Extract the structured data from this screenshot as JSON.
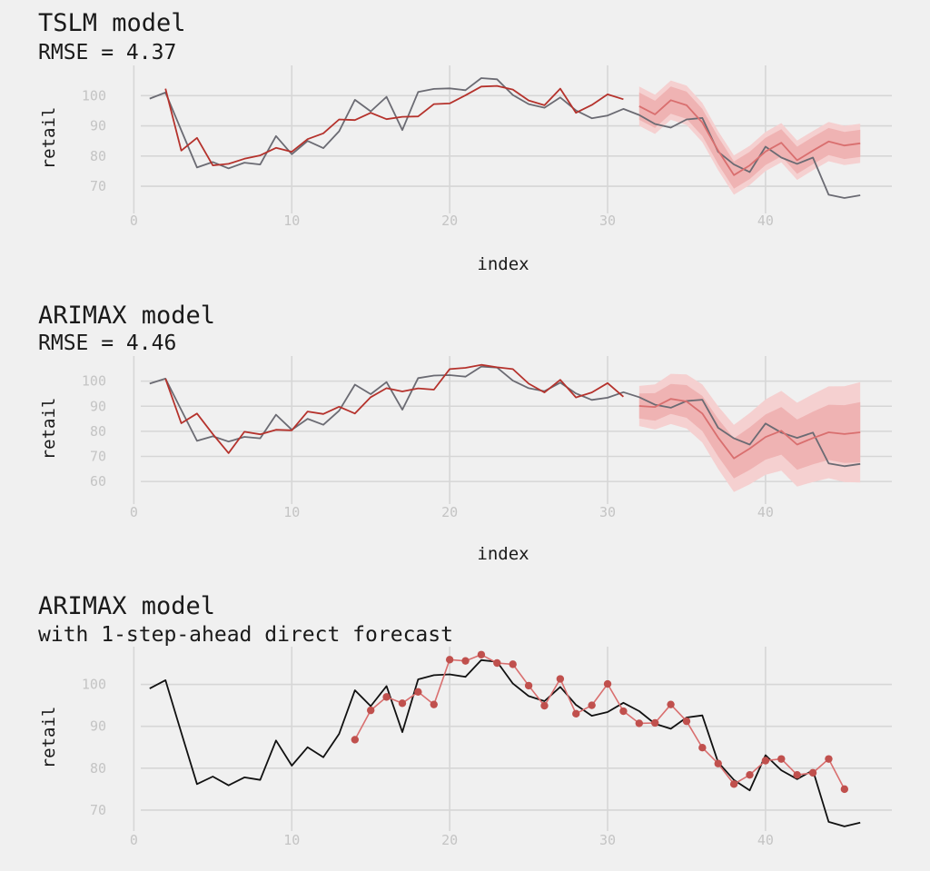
{
  "colors": {
    "background": "#f0f0f0",
    "actual": "#6b6b73",
    "actual_panel3": "#111111",
    "fitted": "#b5322c",
    "forecast": "#d96f6f",
    "band_inner": "#efb3b3",
    "band_outer": "#f5d0d0",
    "grid": "#d6d6d6",
    "tick_text": "#c4c4c4"
  },
  "chart_data": [
    {
      "type": "line",
      "title": "TSLM model",
      "subtitle": "RMSE = 4.37",
      "xlabel": "index",
      "ylabel": "retail",
      "xlim": [
        -1,
        48
      ],
      "ylim": [
        61,
        110
      ],
      "xticks": [
        0,
        10,
        20,
        30,
        40
      ],
      "yticks": [
        70,
        80,
        90,
        100
      ],
      "grid": true,
      "series": [
        {
          "role": "actual",
          "x": [
            1,
            2,
            3,
            4,
            5,
            6,
            7,
            8,
            9,
            10,
            11,
            12,
            13,
            14,
            15,
            16,
            17,
            18,
            19,
            20,
            21,
            22,
            23,
            24,
            25,
            26,
            27,
            28,
            29,
            30,
            31,
            32,
            33,
            34,
            35,
            36,
            37,
            38,
            39,
            40,
            41,
            42,
            43,
            44,
            45,
            46
          ],
          "values": [
            99.0,
            101.0,
            88.5,
            76.2,
            78.0,
            75.9,
            77.8,
            77.2,
            86.6,
            80.6,
            85.0,
            82.6,
            88.2,
            98.6,
            94.8,
            99.6,
            88.6,
            101.2,
            102.2,
            102.4,
            101.8,
            105.8,
            105.4,
            100.2,
            97.2,
            96.0,
            99.4,
            95.1,
            92.5,
            93.4,
            95.6,
            93.6,
            90.6,
            89.4,
            92.1,
            92.6,
            81.4,
            77.2,
            74.7,
            83.1,
            79.5,
            77.4,
            79.5,
            67.2,
            66.1,
            67.0
          ]
        },
        {
          "role": "fitted",
          "x": [
            2,
            3,
            4,
            5,
            6,
            7,
            8,
            9,
            10,
            11,
            12,
            13,
            14,
            15,
            16,
            17,
            18,
            19,
            20,
            21,
            22,
            23,
            24,
            25,
            26,
            27,
            28,
            29,
            30,
            31
          ],
          "values": [
            102.3,
            81.8,
            86.0,
            76.9,
            77.4,
            79.1,
            80.2,
            82.7,
            81.4,
            85.6,
            87.5,
            92.1,
            91.9,
            94.3,
            92.2,
            93.0,
            93.1,
            97.2,
            97.4,
            100.1,
            103.0,
            103.2,
            102.0,
            98.4,
            96.8,
            102.3,
            94.3,
            96.9,
            100.4,
            98.8
          ]
        },
        {
          "role": "forecast",
          "x": [
            32,
            33,
            34,
            35,
            36,
            37,
            38,
            39,
            40,
            41,
            42,
            43,
            44,
            45,
            46
          ],
          "values": [
            96.5,
            93.8,
            98.5,
            96.8,
            91.1,
            81.8,
            73.7,
            76.9,
            81.5,
            84.4,
            78.6,
            81.8,
            84.8,
            83.5,
            84.2
          ],
          "lower80": [
            92.0,
            89.3,
            94.0,
            92.3,
            86.6,
            77.3,
            69.2,
            72.4,
            77.0,
            79.9,
            74.1,
            77.3,
            80.3,
            79.0,
            79.7
          ],
          "upper80": [
            101.0,
            98.3,
            103.0,
            101.3,
            95.6,
            86.3,
            78.2,
            81.4,
            86.0,
            88.9,
            83.1,
            86.3,
            89.3,
            88.0,
            88.7
          ],
          "lower95": [
            90.0,
            87.3,
            92.0,
            90.3,
            84.6,
            75.3,
            67.2,
            70.4,
            75.0,
            77.9,
            72.1,
            75.3,
            78.3,
            77.0,
            77.7
          ],
          "upper95": [
            103.0,
            100.3,
            105.0,
            103.3,
            97.6,
            88.3,
            80.2,
            83.4,
            88.0,
            90.9,
            85.1,
            88.3,
            91.3,
            90.0,
            90.7
          ]
        }
      ]
    },
    {
      "type": "line",
      "title": "ARIMAX model",
      "subtitle": "RMSE = 4.46",
      "xlabel": "index",
      "ylabel": "retail",
      "xlim": [
        -1,
        48
      ],
      "ylim": [
        51,
        110
      ],
      "xticks": [
        0,
        10,
        20,
        30,
        40
      ],
      "yticks": [
        60,
        70,
        80,
        90,
        100
      ],
      "grid": true,
      "series": [
        {
          "role": "actual",
          "x": [
            1,
            2,
            3,
            4,
            5,
            6,
            7,
            8,
            9,
            10,
            11,
            12,
            13,
            14,
            15,
            16,
            17,
            18,
            19,
            20,
            21,
            22,
            23,
            24,
            25,
            26,
            27,
            28,
            29,
            30,
            31,
            32,
            33,
            34,
            35,
            36,
            37,
            38,
            39,
            40,
            41,
            42,
            43,
            44,
            45,
            46
          ],
          "values": [
            99.0,
            101.0,
            88.5,
            76.2,
            78.0,
            75.9,
            77.8,
            77.2,
            86.6,
            80.6,
            85.0,
            82.6,
            88.2,
            98.6,
            94.8,
            99.6,
            88.6,
            101.2,
            102.2,
            102.4,
            101.8,
            105.8,
            105.4,
            100.2,
            97.2,
            96.0,
            99.4,
            95.1,
            92.5,
            93.4,
            95.6,
            93.6,
            90.6,
            89.4,
            92.1,
            92.6,
            81.4,
            77.2,
            74.7,
            83.1,
            79.5,
            77.4,
            79.5,
            67.2,
            66.1,
            67.0
          ]
        },
        {
          "role": "fitted",
          "x": [
            2,
            3,
            4,
            5,
            6,
            7,
            8,
            9,
            10,
            11,
            12,
            13,
            14,
            15,
            16,
            17,
            18,
            19,
            20,
            21,
            22,
            23,
            24,
            25,
            26,
            27,
            28,
            29,
            30,
            31
          ],
          "values": [
            101.0,
            83.2,
            87.1,
            78.9,
            71.3,
            79.8,
            78.8,
            80.6,
            80.4,
            87.9,
            86.9,
            89.8,
            87.1,
            93.6,
            97.2,
            95.9,
            97.1,
            96.6,
            104.8,
            105.3,
            106.5,
            105.5,
            104.8,
            99.0,
            95.5,
            100.5,
            93.5,
            95.5,
            99.2,
            93.8
          ]
        },
        {
          "role": "forecast",
          "x": [
            32,
            33,
            34,
            35,
            36,
            37,
            38,
            39,
            40,
            41,
            42,
            43,
            44,
            45,
            46
          ],
          "values": [
            90.1,
            89.7,
            92.9,
            91.9,
            87.1,
            77.5,
            69.2,
            73.1,
            77.7,
            80.2,
            74.7,
            77.3,
            79.6,
            78.9,
            79.6
          ],
          "lower80": [
            85.1,
            84.2,
            86.9,
            85.4,
            80.1,
            70.0,
            61.2,
            64.6,
            68.7,
            70.7,
            64.7,
            66.8,
            68.6,
            67.4,
            67.6
          ],
          "upper80": [
            95.1,
            95.2,
            98.9,
            98.4,
            94.1,
            85.0,
            77.2,
            81.6,
            86.7,
            89.7,
            84.7,
            87.8,
            90.6,
            90.4,
            91.6
          ],
          "lower95": [
            82.1,
            80.7,
            82.9,
            81.1,
            75.5,
            65.0,
            55.8,
            58.9,
            62.7,
            64.3,
            58.0,
            59.8,
            61.3,
            59.8,
            59.6
          ],
          "upper95": [
            98.1,
            98.7,
            102.9,
            102.7,
            98.7,
            90.0,
            82.6,
            87.3,
            92.7,
            96.1,
            91.4,
            94.8,
            97.9,
            98.0,
            99.6
          ]
        }
      ]
    },
    {
      "type": "line",
      "title": "ARIMAX model",
      "subtitle": "with 1-step-ahead direct forecast",
      "xlabel": "",
      "ylabel": "retail",
      "xlim": [
        -1,
        48
      ],
      "ylim": [
        65,
        109
      ],
      "xticks": [
        0,
        10,
        20,
        30,
        40
      ],
      "yticks": [
        70,
        80,
        90,
        100
      ],
      "grid": true,
      "series": [
        {
          "role": "actual",
          "x": [
            1,
            2,
            3,
            4,
            5,
            6,
            7,
            8,
            9,
            10,
            11,
            12,
            13,
            14,
            15,
            16,
            17,
            18,
            19,
            20,
            21,
            22,
            23,
            24,
            25,
            26,
            27,
            28,
            29,
            30,
            31,
            32,
            33,
            34,
            35,
            36,
            37,
            38,
            39,
            40,
            41,
            42,
            43,
            44,
            45,
            46
          ],
          "values": [
            99.0,
            101.0,
            88.5,
            76.2,
            78.0,
            75.9,
            77.8,
            77.2,
            86.6,
            80.6,
            85.0,
            82.6,
            88.2,
            98.6,
            94.8,
            99.6,
            88.6,
            101.2,
            102.2,
            102.4,
            101.8,
            105.8,
            105.4,
            100.2,
            97.2,
            96.0,
            99.4,
            95.1,
            92.5,
            93.4,
            95.6,
            93.6,
            90.6,
            89.4,
            92.1,
            92.6,
            81.4,
            77.2,
            74.7,
            83.1,
            79.5,
            77.4,
            79.5,
            67.2,
            66.1,
            67.0
          ]
        },
        {
          "role": "one_step_forecast",
          "x": [
            14,
            15,
            16,
            17,
            18,
            19,
            20,
            21,
            22,
            23,
            24,
            25,
            26,
            27,
            28,
            29,
            30,
            31,
            32,
            33,
            34,
            35,
            36,
            37,
            38,
            39,
            40,
            41,
            42,
            43,
            44,
            45
          ],
          "values": [
            86.8,
            93.8,
            97.0,
            95.5,
            98.2,
            95.2,
            105.9,
            105.6,
            107.1,
            105.1,
            104.8,
            99.7,
            94.9,
            101.3,
            93.0,
            95.0,
            100.1,
            93.6,
            90.7,
            90.8,
            95.2,
            91.2,
            84.9,
            81.1,
            76.2,
            78.4,
            81.8,
            82.2,
            78.4,
            78.9,
            82.2,
            75.0
          ]
        }
      ]
    }
  ]
}
